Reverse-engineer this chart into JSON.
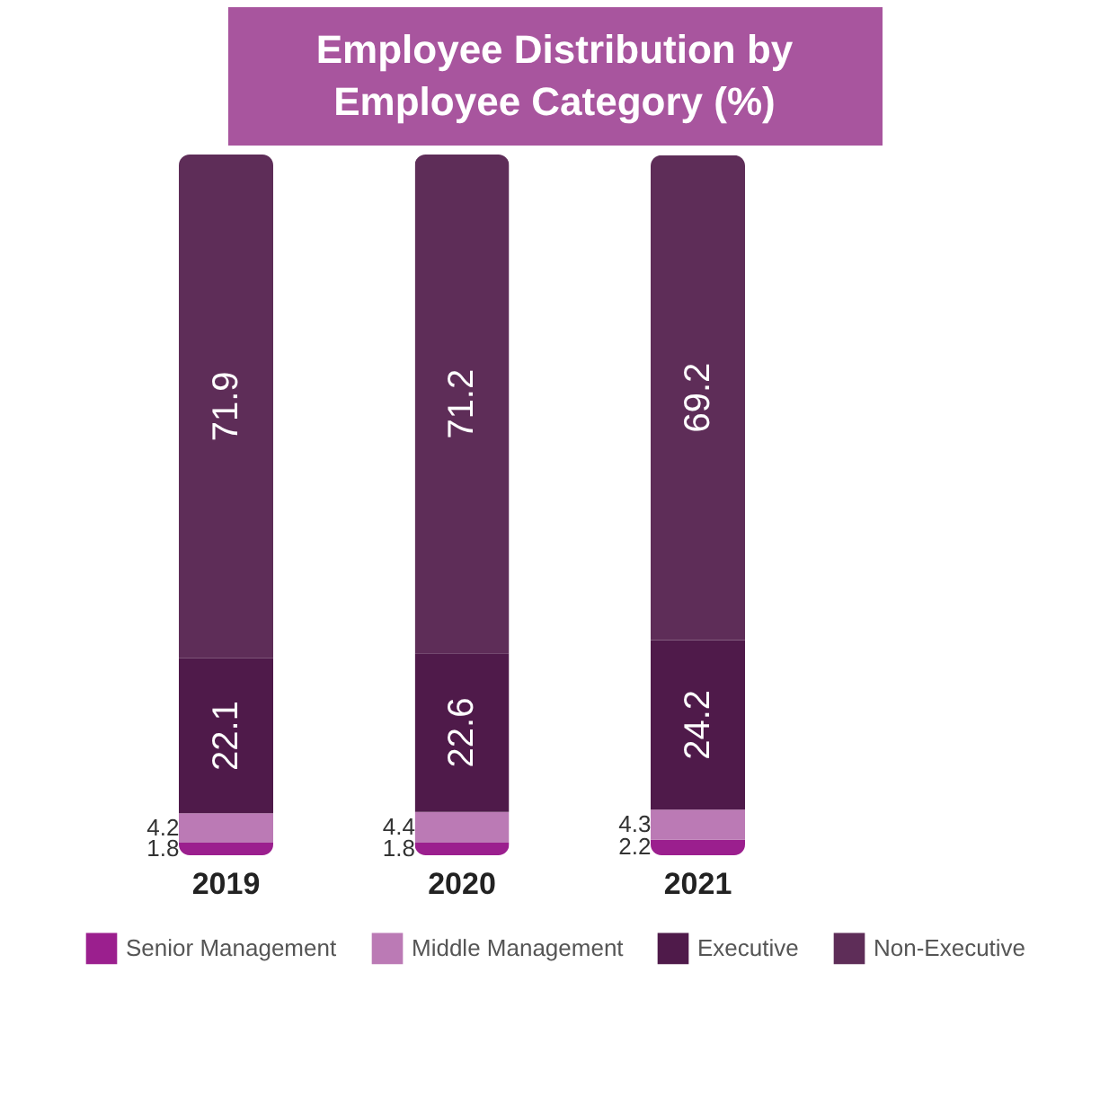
{
  "chart_data": {
    "type": "bar",
    "title": "Employee Distribution by Employee Category (%)",
    "stacked": true,
    "data_labels": true,
    "legend": "bottom",
    "grid": false,
    "categories": [
      "2019",
      "2020",
      "2021"
    ],
    "series": [
      {
        "name": "Senior Management",
        "color": "#9b1f8e",
        "values": [
          1.8,
          1.8,
          2.2
        ]
      },
      {
        "name": "Middle Management",
        "color": "#bb7ab5",
        "values": [
          4.2,
          4.4,
          4.3
        ]
      },
      {
        "name": "Executive",
        "color": "#4f1a4a",
        "values": [
          22.1,
          22.6,
          24.2
        ]
      },
      {
        "name": "Non-Executive",
        "color": "#5e2d58",
        "values": [
          71.9,
          71.2,
          69.2
        ]
      }
    ]
  }
}
